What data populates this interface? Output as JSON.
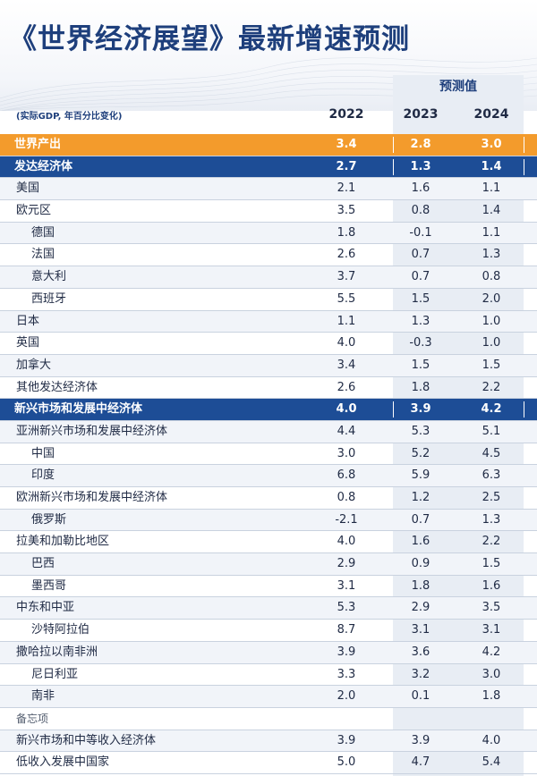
{
  "title": "《世界经济展望》最新增速预测",
  "units_note": "(实际GDP, 年百分比变化)",
  "forecast_label": "预测值",
  "columns": [
    "2022",
    "2023",
    "2024"
  ],
  "rows": [
    {
      "name": "世界产出",
      "values": [
        "3.4",
        "2.8",
        "3.0"
      ],
      "style": "world",
      "level": 0
    },
    {
      "name": "发达经济体",
      "values": [
        "2.7",
        "1.3",
        "1.4"
      ],
      "style": "group",
      "level": 0
    },
    {
      "name": "美国",
      "values": [
        "2.1",
        "1.6",
        "1.1"
      ],
      "style": "alt",
      "level": 1
    },
    {
      "name": "欧元区",
      "values": [
        "3.5",
        "0.8",
        "1.4"
      ],
      "style": "plain",
      "level": 1
    },
    {
      "name": "德国",
      "values": [
        "1.8",
        "-0.1",
        "1.1"
      ],
      "style": "alt",
      "level": 2
    },
    {
      "name": "法国",
      "values": [
        "2.6",
        "0.7",
        "1.3"
      ],
      "style": "plain",
      "level": 2
    },
    {
      "name": "意大利",
      "values": [
        "3.7",
        "0.7",
        "0.8"
      ],
      "style": "alt",
      "level": 2
    },
    {
      "name": "西班牙",
      "values": [
        "5.5",
        "1.5",
        "2.0"
      ],
      "style": "plain",
      "level": 2
    },
    {
      "name": "日本",
      "values": [
        "1.1",
        "1.3",
        "1.0"
      ],
      "style": "alt",
      "level": 1
    },
    {
      "name": "英国",
      "values": [
        "4.0",
        "-0.3",
        "1.0"
      ],
      "style": "plain",
      "level": 1
    },
    {
      "name": "加拿大",
      "values": [
        "3.4",
        "1.5",
        "1.5"
      ],
      "style": "alt",
      "level": 1
    },
    {
      "name": "其他发达经济体",
      "values": [
        "2.6",
        "1.8",
        "2.2"
      ],
      "style": "plain",
      "level": 1
    },
    {
      "name": "新兴市场和发展中经济体",
      "values": [
        "4.0",
        "3.9",
        "4.2"
      ],
      "style": "group",
      "level": 0
    },
    {
      "name": "亚洲新兴市场和发展中经济体",
      "values": [
        "4.4",
        "5.3",
        "5.1"
      ],
      "style": "alt",
      "level": 1
    },
    {
      "name": "中国",
      "values": [
        "3.0",
        "5.2",
        "4.5"
      ],
      "style": "plain",
      "level": 2
    },
    {
      "name": "印度",
      "values": [
        "6.8",
        "5.9",
        "6.3"
      ],
      "style": "alt",
      "level": 2
    },
    {
      "name": "欧洲新兴市场和发展中经济体",
      "values": [
        "0.8",
        "1.2",
        "2.5"
      ],
      "style": "plain",
      "level": 1
    },
    {
      "name": "俄罗斯",
      "values": [
        "-2.1",
        "0.7",
        "1.3"
      ],
      "style": "alt",
      "level": 2
    },
    {
      "name": "拉美和加勒比地区",
      "values": [
        "4.0",
        "1.6",
        "2.2"
      ],
      "style": "plain",
      "level": 1
    },
    {
      "name": "巴西",
      "values": [
        "2.9",
        "0.9",
        "1.5"
      ],
      "style": "alt",
      "level": 2
    },
    {
      "name": "墨西哥",
      "values": [
        "3.1",
        "1.8",
        "1.6"
      ],
      "style": "plain",
      "level": 2
    },
    {
      "name": "中东和中亚",
      "values": [
        "5.3",
        "2.9",
        "3.5"
      ],
      "style": "alt",
      "level": 1
    },
    {
      "name": "沙特阿拉伯",
      "values": [
        "8.7",
        "3.1",
        "3.1"
      ],
      "style": "plain",
      "level": 2
    },
    {
      "name": "撒哈拉以南非洲",
      "values": [
        "3.9",
        "3.6",
        "4.2"
      ],
      "style": "alt",
      "level": 1
    },
    {
      "name": "尼日利亚",
      "values": [
        "3.3",
        "3.2",
        "3.0"
      ],
      "style": "plain",
      "level": 2
    },
    {
      "name": "南非",
      "values": [
        "2.0",
        "0.1",
        "1.8"
      ],
      "style": "alt",
      "level": 2
    },
    {
      "name": "备忘项",
      "values": [
        "",
        "",
        ""
      ],
      "style": "memo",
      "level": 1
    },
    {
      "name": "新兴市场和中等收入经济体",
      "values": [
        "3.9",
        "3.9",
        "4.0"
      ],
      "style": "alt",
      "level": 1
    },
    {
      "name": "低收入发展中国家",
      "values": [
        "5.0",
        "4.7",
        "5.4"
      ],
      "style": "plain",
      "level": 1
    }
  ],
  "colors": {
    "title": "#1e3f7c",
    "world_row": "#f39b2c",
    "group_row": "#1d4d96",
    "forecast_band": "#e8edf4"
  },
  "chart_data": {
    "type": "table",
    "title": "《世界经济展望》最新增速预测",
    "subtitle": "(实际GDP, 年百分比变化)",
    "columns": [
      "2022",
      "2023",
      "2024"
    ],
    "forecast_columns": [
      "2023",
      "2024"
    ],
    "forecast_label": "预测值"
  }
}
